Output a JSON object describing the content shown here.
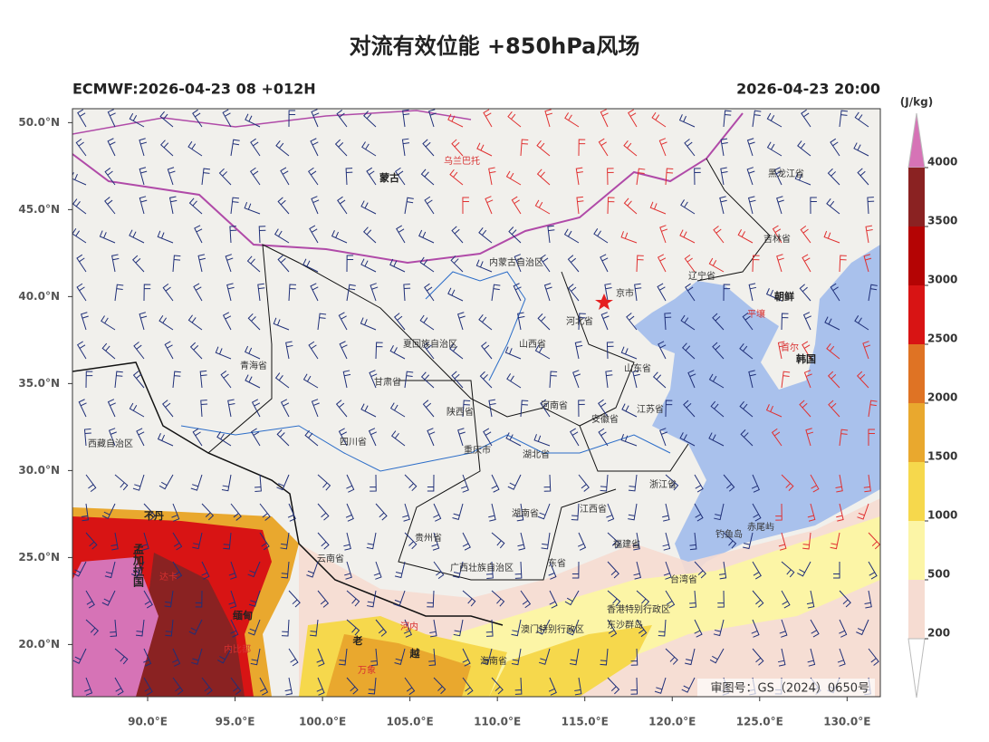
{
  "chart_data": {
    "type": "map",
    "title": "对流有效位能 +850hPa风场",
    "subtitle_left": "ECMWF:2026-04-23 08 +012H",
    "subtitle_right": "2026-04-23 20:00",
    "xlim": [
      85.7,
      131.9
    ],
    "ylim": [
      17.0,
      50.8
    ],
    "xticks": [
      {
        "value": 90,
        "label": "90.0°E"
      },
      {
        "value": 95,
        "label": "95.0°E"
      },
      {
        "value": 100,
        "label": "100.0°E"
      },
      {
        "value": 105,
        "label": "105.0°E"
      },
      {
        "value": 110,
        "label": "110.0°E"
      },
      {
        "value": 115,
        "label": "115.0°E"
      },
      {
        "value": 120,
        "label": "120.0°E"
      },
      {
        "value": 125,
        "label": "125.0°E"
      },
      {
        "value": 130,
        "label": "130.0°E"
      }
    ],
    "yticks": [
      {
        "value": 20,
        "label": "20.0°N"
      },
      {
        "value": 25,
        "label": "25.0°N"
      },
      {
        "value": 30,
        "label": "30.0°N"
      },
      {
        "value": 35,
        "label": "35.0°N"
      },
      {
        "value": 40,
        "label": "40.0°N"
      },
      {
        "value": 45,
        "label": "45.0°N"
      },
      {
        "value": 50,
        "label": "50.0°N"
      }
    ],
    "colorbar": {
      "unit": "(J/kg)",
      "levels": [
        200,
        500,
        1000,
        1500,
        2000,
        2500,
        3000,
        3500,
        4000
      ],
      "colors": [
        "#f6dcd2",
        "#fcf5a6",
        "#f6d84c",
        "#e9a82e",
        "#df7324",
        "#d81414",
        "#b40404",
        "#8a2222"
      ],
      "over_color": "#d673b6",
      "under_color": "#ffffff"
    },
    "map_labels": [
      "蒙古",
      "乌兰巴托",
      "黑龙江省",
      "吉林省",
      "内蒙古自治区",
      "辽宁省",
      "朝鲜",
      "平壤",
      "首尔",
      "韩国",
      "京市",
      "河北省",
      "山西省",
      "山东省",
      "夏回族自治区",
      "青海省",
      "甘肃省",
      "陕西省",
      "河南省",
      "安徽省",
      "江苏省",
      "西藏自治区",
      "四川省",
      "重庆市",
      "湖北省",
      "浙江省",
      "湖南省",
      "江西省",
      "贵州省",
      "云南省",
      "福建省",
      "广西壮族自治区",
      "东省",
      "台湾省",
      "钓鱼岛",
      "赤尾屿",
      "香港特别行政区",
      "澳门特别行政区",
      "东沙群岛",
      "海南省",
      "不丹",
      "孟加拉国",
      "缅甸",
      "老",
      "越",
      "河内",
      "内比都",
      "达卡",
      "万象"
    ],
    "approval": "审图号：GS（2024）0650号"
  }
}
